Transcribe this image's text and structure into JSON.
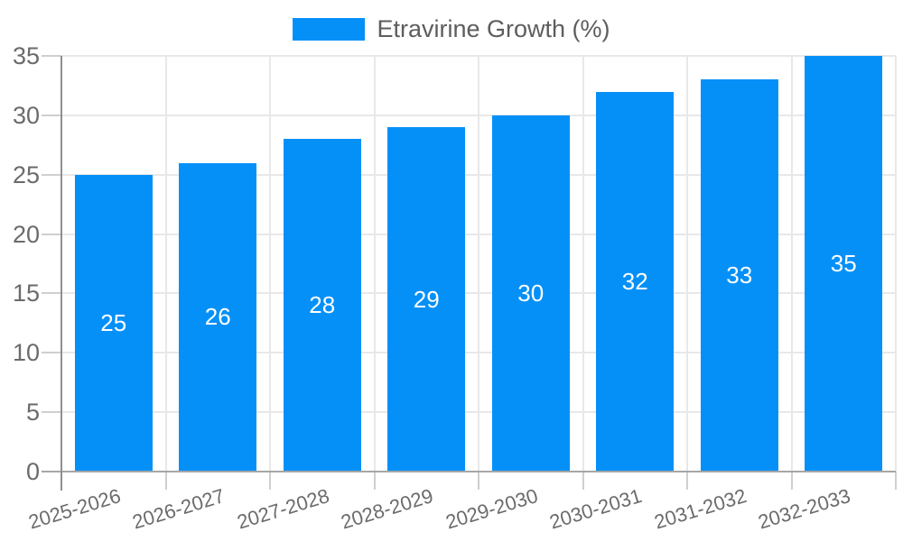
{
  "chart_data": {
    "type": "bar",
    "title": "Etravirine Growth (%)",
    "legend": [
      {
        "label": "Etravirine Growth (%)",
        "color": "#0590f8"
      }
    ],
    "categories": [
      "2025-2026",
      "2026-2027",
      "2027-2028",
      "2028-2029",
      "2029-2030",
      "2030-2031",
      "2031-2032",
      "2032-2033"
    ],
    "series": [
      {
        "name": "Etravirine Growth (%)",
        "values": [
          25,
          26,
          28,
          29,
          30,
          32,
          33,
          35
        ]
      }
    ],
    "value_labels": [
      "25",
      "26",
      "28",
      "29",
      "30",
      "32",
      "33",
      "35"
    ],
    "xlabel": "",
    "ylabel": "",
    "ylim": [
      0,
      35
    ],
    "yticks": [
      0,
      5,
      10,
      15,
      20,
      25,
      30,
      35
    ],
    "ytick_labels": [
      "0",
      "5",
      "10",
      "15",
      "20",
      "25",
      "30",
      "35"
    ],
    "grid": true,
    "legend_position": "top",
    "bar_color": "#0590f8",
    "value_label_color": "#ffffff"
  }
}
